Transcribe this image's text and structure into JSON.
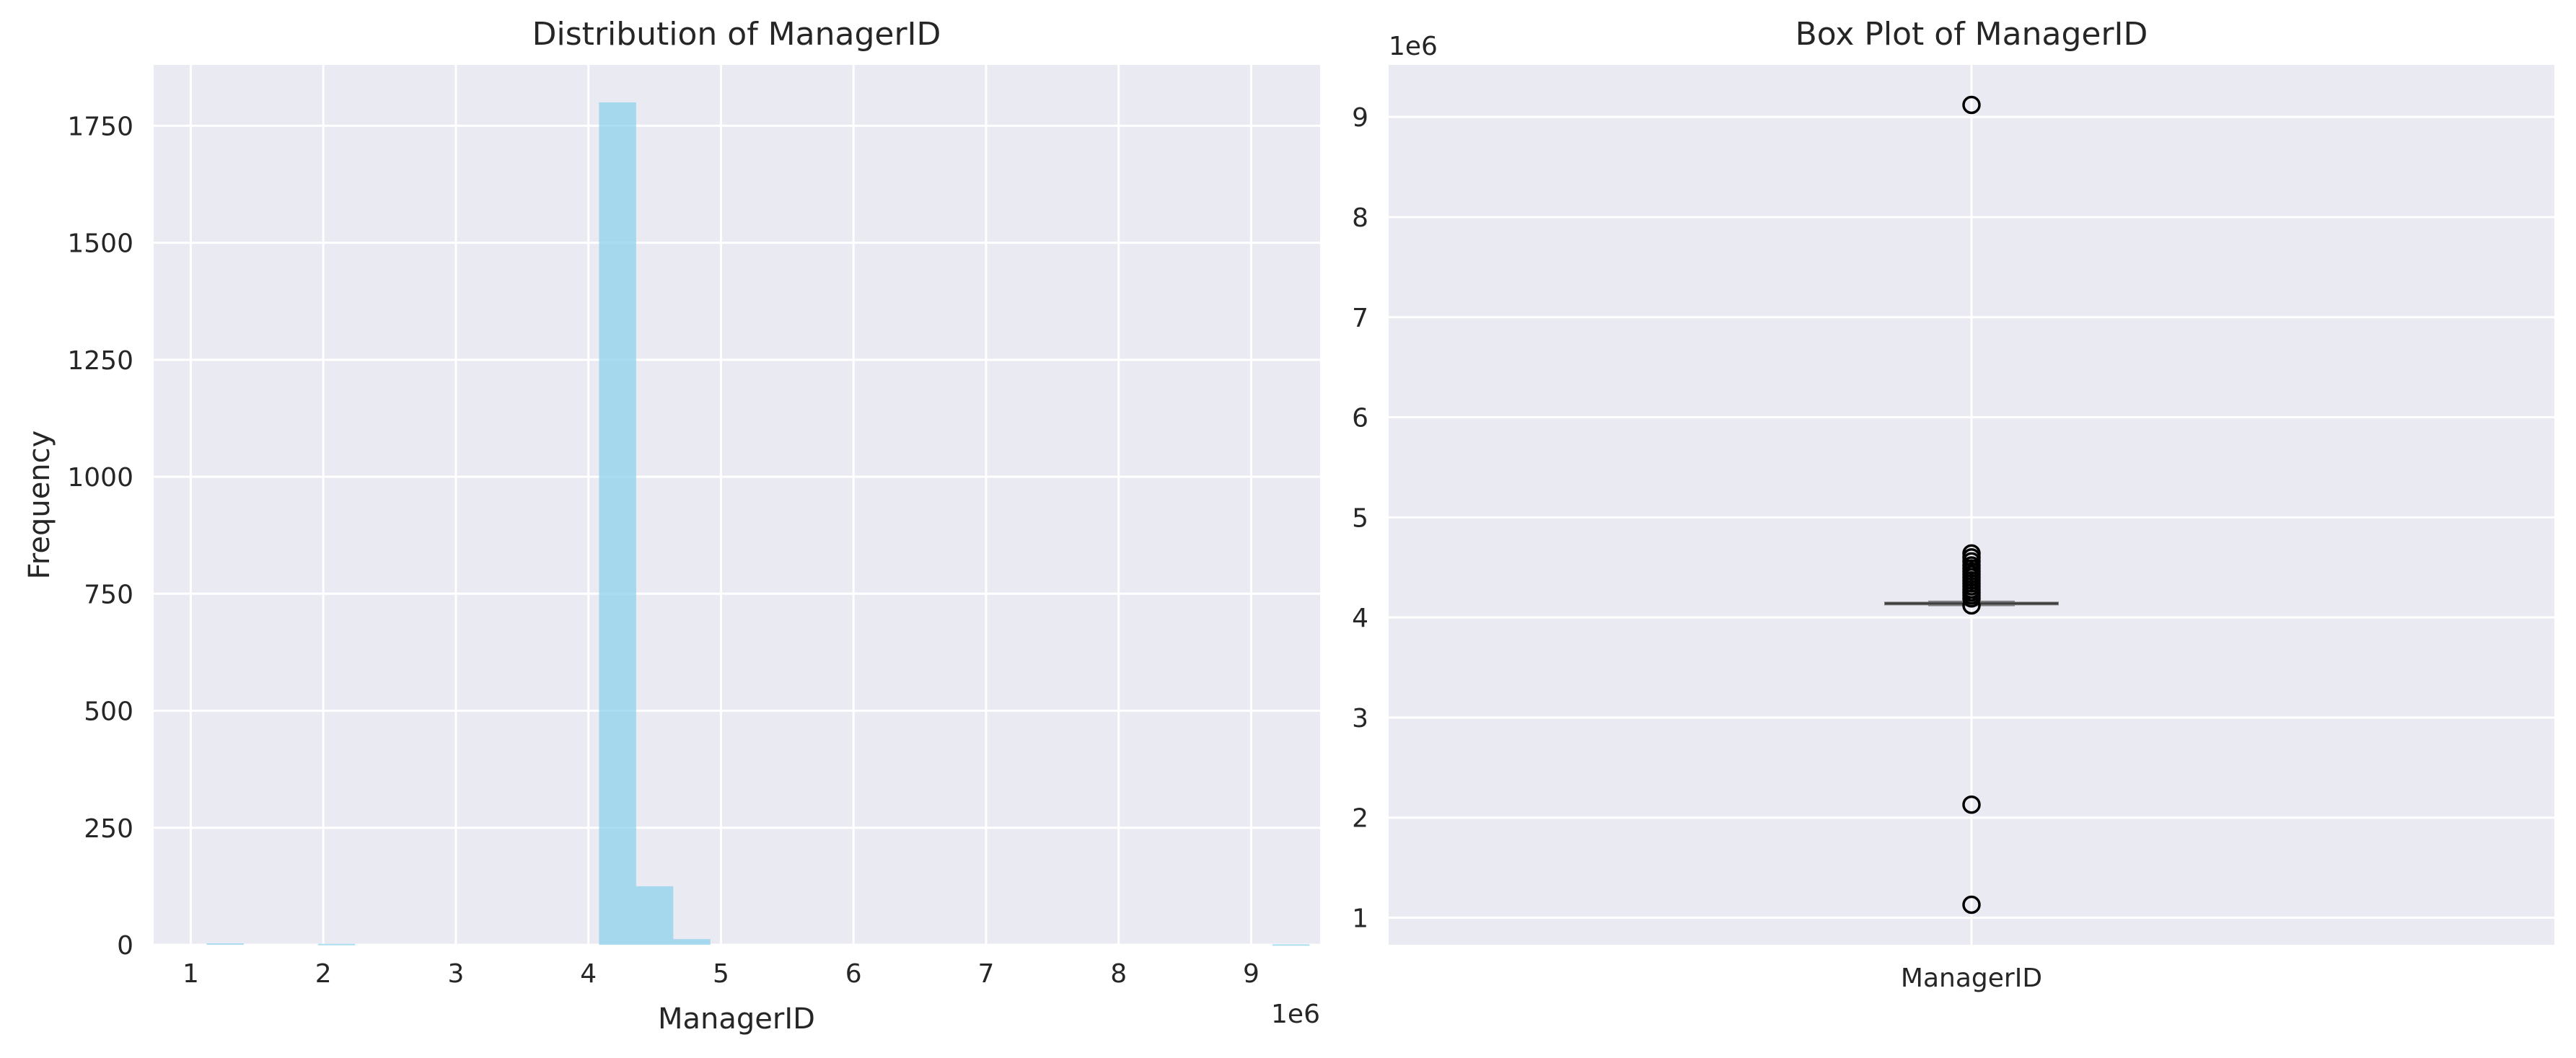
{
  "chart_data": [
    {
      "type": "bar",
      "subtype": "histogram",
      "title": "Distribution of ManagerID",
      "xlabel": "ManagerID",
      "ylabel": "Frequency",
      "x_offset_text": "1e6",
      "xlim": [
        0.72,
        9.52
      ],
      "ylim": [
        0,
        1880
      ],
      "xticks": [
        "1",
        "2",
        "3",
        "4",
        "5",
        "6",
        "7",
        "8",
        "9"
      ],
      "yticks": [
        "0",
        "250",
        "500",
        "750",
        "1000",
        "1250",
        "1500",
        "1750"
      ],
      "grid": true,
      "color": "#87ceeb",
      "bins": [
        {
          "x0": 1.12,
          "x1": 1.4,
          "count": 3
        },
        {
          "x0": 1.4,
          "x1": 1.68,
          "count": 0
        },
        {
          "x0": 1.68,
          "x1": 1.96,
          "count": 0
        },
        {
          "x0": 1.96,
          "x1": 2.24,
          "count": 2
        },
        {
          "x0": 2.24,
          "x1": 2.52,
          "count": 0
        },
        {
          "x0": 2.52,
          "x1": 2.8,
          "count": 0
        },
        {
          "x0": 2.8,
          "x1": 3.08,
          "count": 0
        },
        {
          "x0": 3.08,
          "x1": 3.36,
          "count": 0
        },
        {
          "x0": 3.36,
          "x1": 3.64,
          "count": 0
        },
        {
          "x0": 3.64,
          "x1": 3.92,
          "count": 0
        },
        {
          "x0": 4.08,
          "x1": 4.36,
          "count": 1800
        },
        {
          "x0": 4.36,
          "x1": 4.64,
          "count": 125
        },
        {
          "x0": 4.64,
          "x1": 4.92,
          "count": 12
        },
        {
          "x0": 4.92,
          "x1": 5.2,
          "count": 0
        },
        {
          "x0": 8.88,
          "x1": 9.16,
          "count": 0
        },
        {
          "x0": 9.16,
          "x1": 9.44,
          "count": 1
        }
      ]
    },
    {
      "type": "box",
      "title": "Box Plot of ManagerID",
      "category": "ManagerID",
      "y_offset_text": "1e6",
      "ylim": [
        0.73,
        9.52
      ],
      "yticks": [
        "1",
        "2",
        "3",
        "4",
        "5",
        "6",
        "7",
        "8",
        "9"
      ],
      "grid": true,
      "box": {
        "q1": 4.13,
        "median": 4.14,
        "q3": 4.15,
        "whisker_low": 4.12,
        "whisker_high": 4.16
      },
      "outliers": [
        9.12,
        4.64,
        4.6,
        4.56,
        4.52,
        4.49,
        4.46,
        4.43,
        4.4,
        4.37,
        4.34,
        4.31,
        4.28,
        4.25,
        4.22,
        4.19,
        4.12,
        2.13,
        1.13
      ]
    }
  ]
}
